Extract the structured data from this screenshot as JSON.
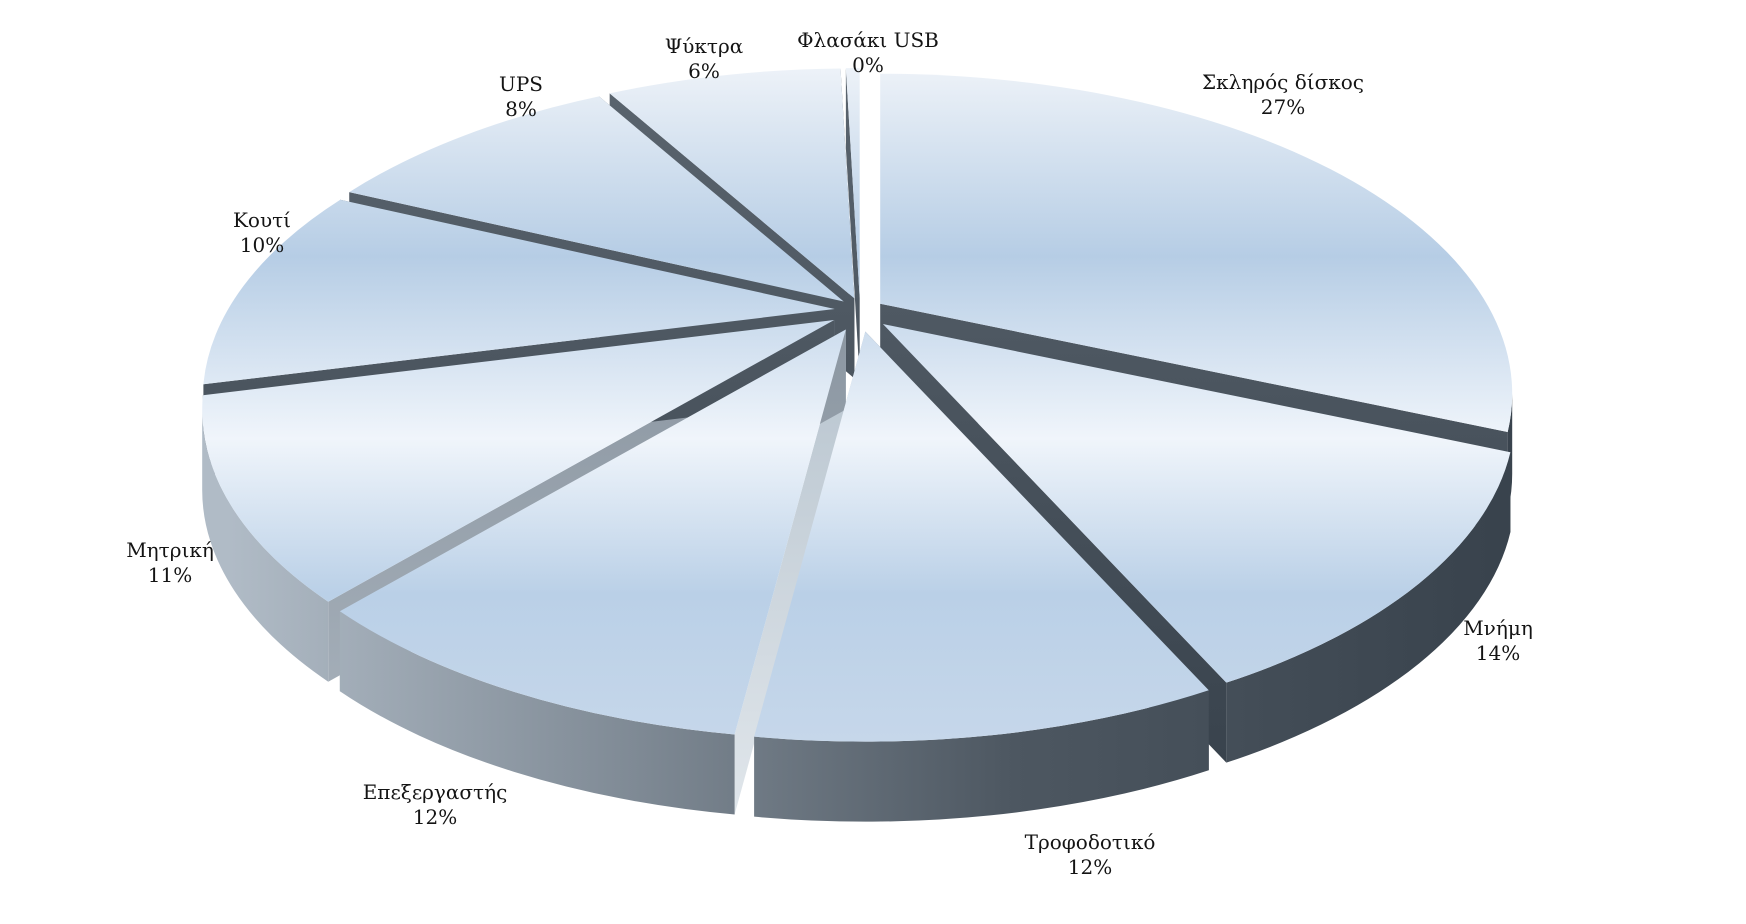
{
  "page": {
    "background": "#ffffff"
  },
  "chart_data": {
    "type": "pie",
    "style": "3d-exploded-perspective",
    "title": "",
    "unit": "%",
    "legend_position": "none",
    "labels_position": "outside",
    "slices": [
      {
        "label": "Σκληρός δίσκος",
        "value": 27,
        "pct_label": "27%"
      },
      {
        "label": "Μνήμη",
        "value": 14,
        "pct_label": "14%"
      },
      {
        "label": "Τροφοδοτικό",
        "value": 12,
        "pct_label": "12%"
      },
      {
        "label": "Επεξεργαστής",
        "value": 12,
        "pct_label": "12%"
      },
      {
        "label": "Μητρική",
        "value": 11,
        "pct_label": "11%"
      },
      {
        "label": "Κουτί",
        "value": 10,
        "pct_label": "10%"
      },
      {
        "label": "UPS",
        "value": 8,
        "pct_label": "8%"
      },
      {
        "label": "Ψύκτρα",
        "value": 6,
        "pct_label": "6%"
      },
      {
        "label": "Φλασάκι USB",
        "value": 0,
        "pct_label": "0%"
      }
    ],
    "colors": {
      "background": "#ffffff",
      "face_top": "#edf2f8",
      "face_back_blue": "#b6cde5",
      "face_center": "#f0f5fb",
      "face_front_blue": "#bad0e7",
      "face_bottom": "#c6d7ea",
      "rim_left": "#b0bbc6",
      "rim_mid": "#7f8a95",
      "rim_right_dark": "#39434d",
      "wall_dark_top": "#5a646e",
      "wall_dark_bottom": "#37414b",
      "wall_medium_top": "#8a95a0",
      "wall_medium_bottom": "#aab4be",
      "wall_light_top": "#b4c1cc",
      "wall_light_bottom": "#dfe5ea",
      "label_text": "#141414"
    }
  }
}
